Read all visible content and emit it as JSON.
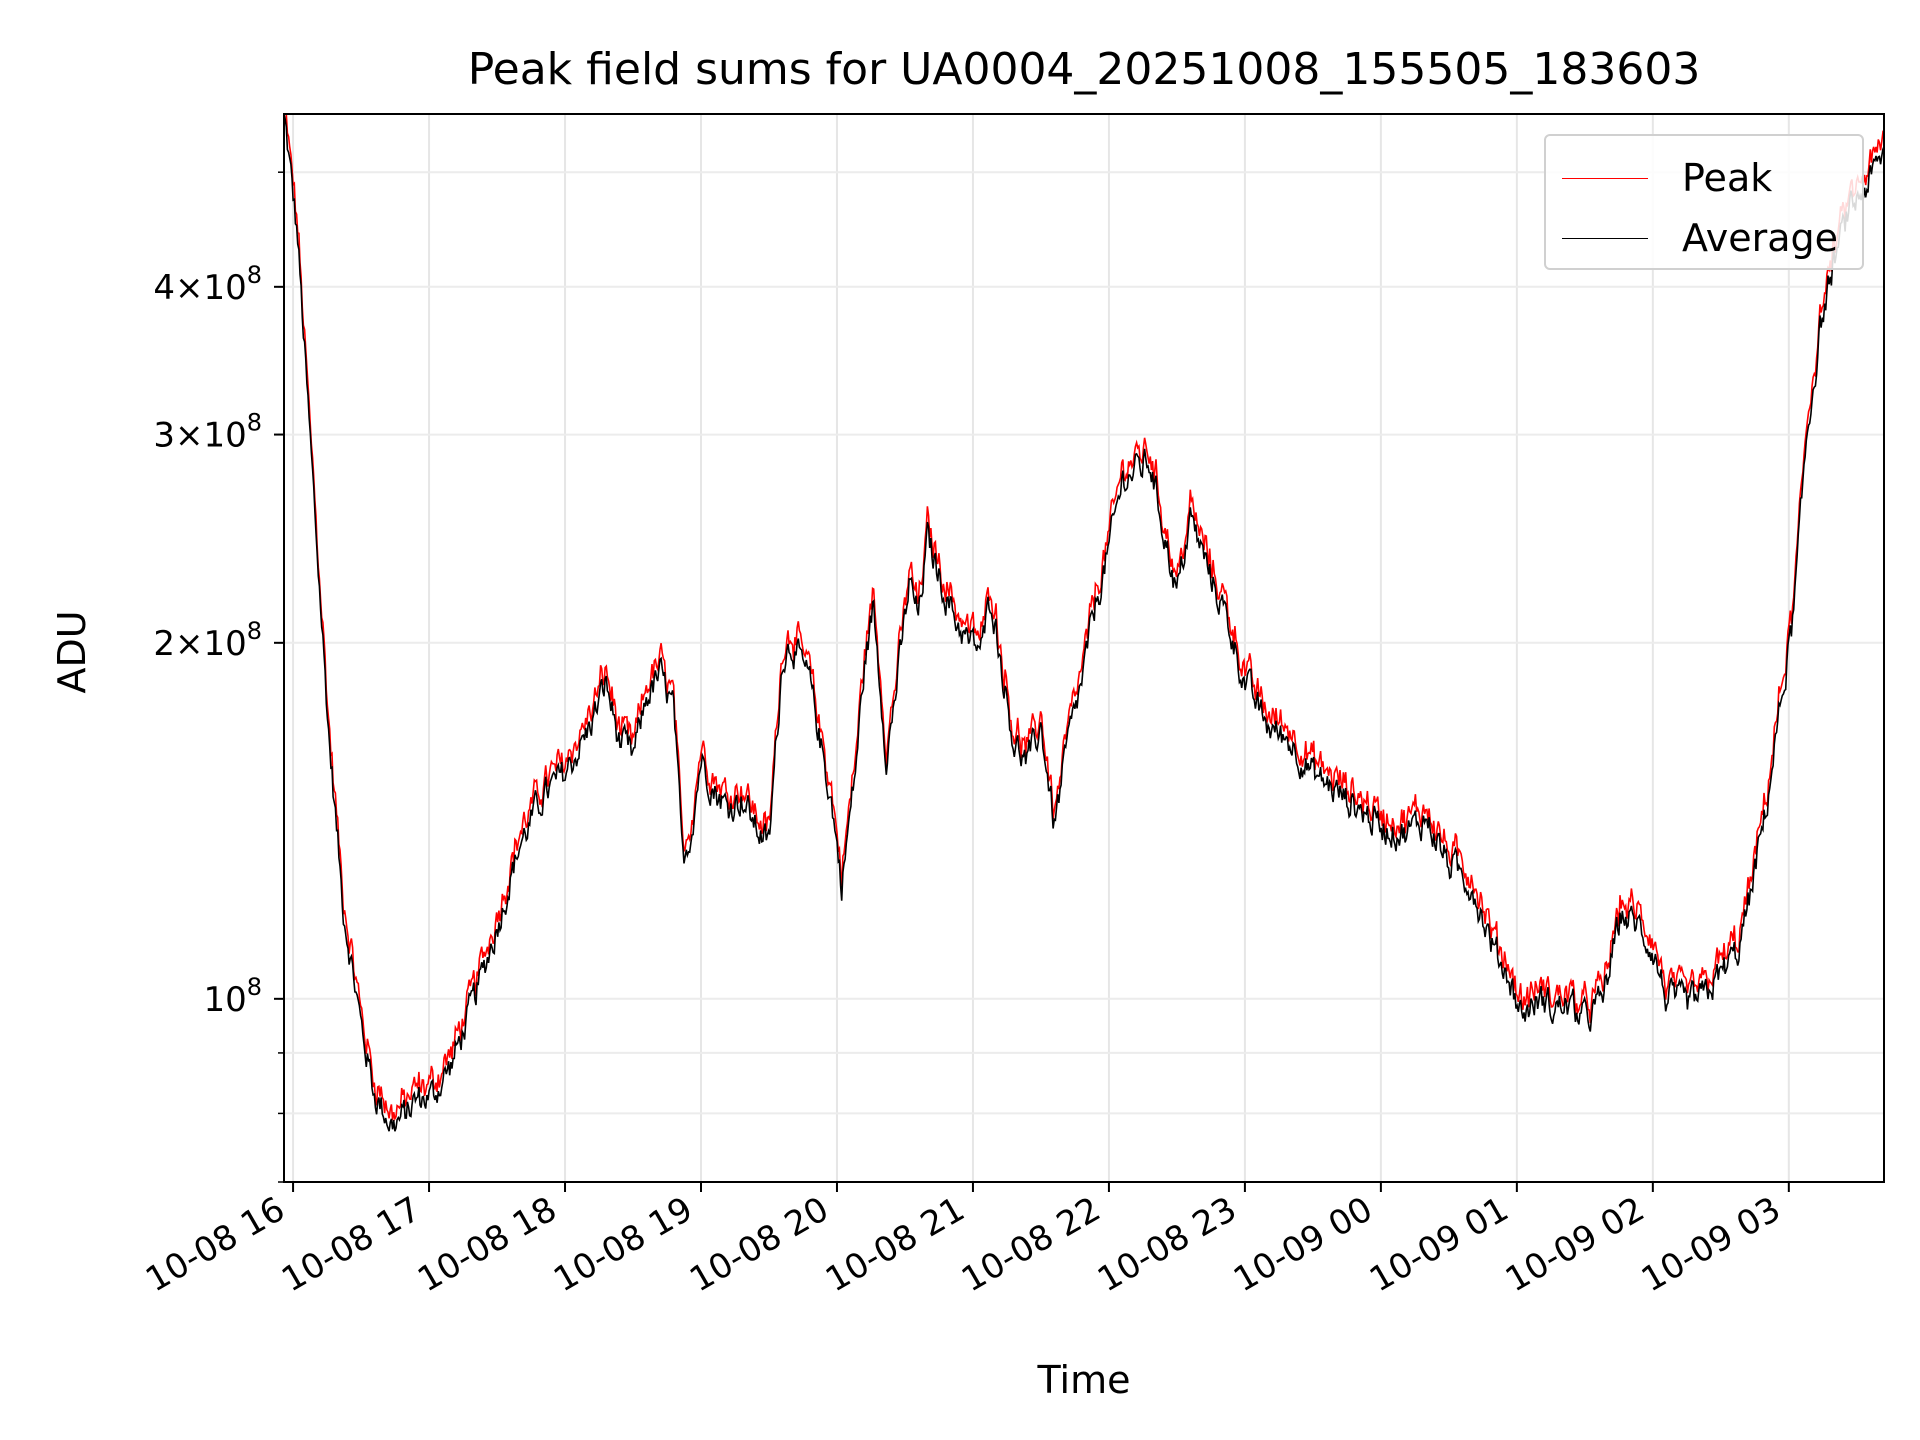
{
  "chart_data": {
    "type": "line",
    "title": "Peak field sums for UA0004_20251008_155505_183603",
    "xlabel": "Time",
    "ylabel": "ADU",
    "yscale": "log",
    "ylim": [
      70000000,
      560000000
    ],
    "x_is_time": true,
    "xlim": [
      "2025-10-08 15:56",
      "2025-10-09 03:42"
    ],
    "x_ticks": [
      "10-08 16",
      "10-08 17",
      "10-08 18",
      "10-08 19",
      "10-08 20",
      "10-08 21",
      "10-08 22",
      "10-08 23",
      "10-09 00",
      "10-09 01",
      "10-09 02",
      "10-09 03"
    ],
    "y_ticks": [
      {
        "value": 100000000,
        "mantissa": "",
        "exp": "8",
        "base": "10"
      },
      {
        "value": 200000000,
        "mantissa": "2",
        "exp": "8",
        "base": "10"
      },
      {
        "value": 300000000,
        "mantissa": "3",
        "exp": "8",
        "base": "10"
      },
      {
        "value": 400000000,
        "mantissa": "4",
        "exp": "8",
        "base": "10"
      }
    ],
    "grid": true,
    "legend_position": "top-right",
    "series": [
      {
        "name": "Peak",
        "color": "#ff0000"
      },
      {
        "name": "Average",
        "color": "#000000"
      }
    ],
    "average_trend": {
      "x": [
        "2025-10-08 15:56",
        "2025-10-08 16:02",
        "2025-10-08 16:06",
        "2025-10-08 16:10",
        "2025-10-08 16:16",
        "2025-10-08 16:22",
        "2025-10-08 16:30",
        "2025-10-08 16:36",
        "2025-10-08 16:44",
        "2025-10-08 16:50",
        "2025-10-08 16:54",
        "2025-10-08 17:02",
        "2025-10-08 17:10",
        "2025-10-08 17:20",
        "2025-10-08 17:30",
        "2025-10-08 17:40",
        "2025-10-08 17:50",
        "2025-10-08 18:00",
        "2025-10-08 18:10",
        "2025-10-08 18:18",
        "2025-10-08 18:24",
        "2025-10-08 18:30",
        "2025-10-08 18:36",
        "2025-10-08 18:42",
        "2025-10-08 18:48",
        "2025-10-08 18:52",
        "2025-10-08 18:56",
        "2025-10-08 19:00",
        "2025-10-08 19:06",
        "2025-10-08 19:12",
        "2025-10-08 19:18",
        "2025-10-08 19:24",
        "2025-10-08 19:30",
        "2025-10-08 19:36",
        "2025-10-08 19:40",
        "2025-10-08 19:48",
        "2025-10-08 19:54",
        "2025-10-08 19:58",
        "2025-10-08 20:02",
        "2025-10-08 20:08",
        "2025-10-08 20:12",
        "2025-10-08 20:16",
        "2025-10-08 20:22",
        "2025-10-08 20:28",
        "2025-10-08 20:32",
        "2025-10-08 20:36",
        "2025-10-08 20:40",
        "2025-10-08 20:46",
        "2025-10-08 20:52",
        "2025-10-08 20:58",
        "2025-10-08 21:04",
        "2025-10-08 21:08",
        "2025-10-08 21:12",
        "2025-10-08 21:18",
        "2025-10-08 21:24",
        "2025-10-08 21:30",
        "2025-10-08 21:36",
        "2025-10-08 21:42",
        "2025-10-08 21:48",
        "2025-10-08 21:54",
        "2025-10-08 22:00",
        "2025-10-08 22:06",
        "2025-10-08 22:12",
        "2025-10-08 22:18",
        "2025-10-08 22:24",
        "2025-10-08 22:30",
        "2025-10-08 22:36",
        "2025-10-08 22:44",
        "2025-10-08 22:52",
        "2025-10-08 23:00",
        "2025-10-08 23:10",
        "2025-10-08 23:20",
        "2025-10-08 23:30",
        "2025-10-08 23:40",
        "2025-10-08 23:50",
        "2025-10-09 00:00",
        "2025-10-09 00:10",
        "2025-10-09 00:20",
        "2025-10-09 00:30",
        "2025-10-09 00:40",
        "2025-10-09 00:50",
        "2025-10-09 00:56",
        "2025-10-09 01:02",
        "2025-10-09 01:10",
        "2025-10-09 01:16",
        "2025-10-09 01:22",
        "2025-10-09 01:30",
        "2025-10-09 01:38",
        "2025-10-09 01:46",
        "2025-10-09 01:54",
        "2025-10-09 02:00",
        "2025-10-09 02:06",
        "2025-10-09 02:14",
        "2025-10-09 02:22",
        "2025-10-09 02:30",
        "2025-10-09 02:38",
        "2025-10-09 02:44",
        "2025-10-09 02:50",
        "2025-10-09 02:56",
        "2025-10-09 03:02",
        "2025-10-09 03:08",
        "2025-10-09 03:14",
        "2025-10-09 03:20",
        "2025-10-09 03:26",
        "2025-10-09 03:32",
        "2025-10-09 03:38",
        "2025-10-09 03:42"
      ],
      "y": [
        560000000,
        440000000,
        330000000,
        250000000,
        165000000,
        120000000,
        95000000,
        83000000,
        78000000,
        80000000,
        82000000,
        83000000,
        88000000,
        100000000,
        115000000,
        135000000,
        148000000,
        155000000,
        168000000,
        185000000,
        165000000,
        160000000,
        180000000,
        188000000,
        175000000,
        130000000,
        140000000,
        160000000,
        150000000,
        145000000,
        148000000,
        140000000,
        135000000,
        195000000,
        200000000,
        185000000,
        160000000,
        145000000,
        125000000,
        155000000,
        190000000,
        215000000,
        160000000,
        195000000,
        225000000,
        210000000,
        245000000,
        225000000,
        210000000,
        200000000,
        198000000,
        220000000,
        195000000,
        165000000,
        158000000,
        170000000,
        140000000,
        165000000,
        185000000,
        215000000,
        240000000,
        275000000,
        280000000,
        285000000,
        250000000,
        220000000,
        255000000,
        230000000,
        210000000,
        185000000,
        170000000,
        165000000,
        155000000,
        150000000,
        145000000,
        140000000,
        138000000,
        142000000,
        130000000,
        125000000,
        110000000,
        105000000,
        97000000,
        100000000,
        98000000,
        99000000,
        96000000,
        100000000,
        118000000,
        115000000,
        110000000,
        100000000,
        99000000,
        100000000,
        105000000,
        110000000,
        125000000,
        145000000,
        175000000,
        210000000,
        300000000,
        370000000,
        420000000,
        460000000,
        480000000,
        500000000,
        520000000
      ]
    },
    "peak_offset_ratio": 1.015
  }
}
